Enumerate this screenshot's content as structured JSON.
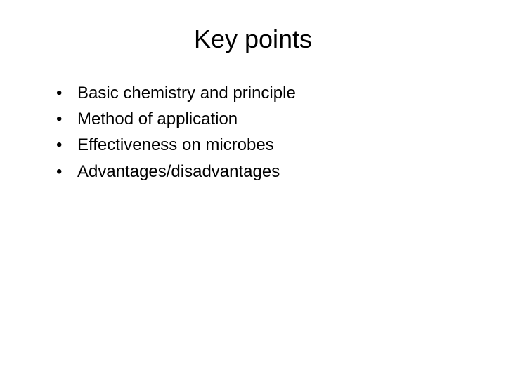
{
  "slide": {
    "title": "Key points",
    "title_fontsize": 36,
    "background_color": "#ffffff",
    "text_color": "#000000",
    "bullet_char": "•",
    "body_fontsize": 24,
    "bullets": [
      "Basic chemistry and principle",
      "Method of application",
      "Effectiveness on microbes",
      "Advantages/disadvantages"
    ]
  }
}
